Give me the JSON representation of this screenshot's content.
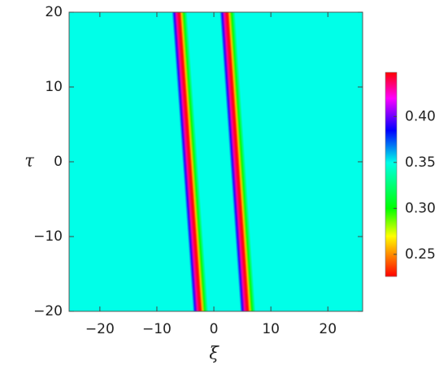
{
  "chart_data": {
    "type": "density",
    "x_label": "ξ",
    "y_label": "τ",
    "xlim": [
      -25.4,
      26.1
    ],
    "xticks": [
      {
        "value": -20,
        "label": "−20"
      },
      {
        "value": -10,
        "label": "−10"
      },
      0,
      10,
      20
    ],
    "ylim": [
      -20,
      20
    ],
    "yticks": [
      {
        "value": -20,
        "label": "−20"
      },
      {
        "value": -10,
        "label": "−10"
      },
      0,
      10,
      20
    ],
    "background_value": 0.35,
    "stripes": [
      {
        "xi_at_top": -6.0,
        "xi_at_bottom": -2.3
      },
      {
        "xi_at_top": 2.4,
        "xi_at_bottom": 6.0
      }
    ],
    "profile": {
      "offsets": [
        -1.4,
        -1.0,
        -0.6,
        -0.2,
        0,
        0.3,
        0.7,
        1.3
      ],
      "values": [
        0.35,
        0.39,
        0.43,
        0.445,
        0.23,
        0.26,
        0.3,
        0.35
      ]
    },
    "colormap": [
      {
        "value": 0.226,
        "color": "#ff0000"
      },
      {
        "value": 0.27,
        "color": "#ffff00"
      },
      {
        "value": 0.3,
        "color": "#00ff00"
      },
      {
        "value": 0.35,
        "color": "#00ffe8"
      },
      {
        "value": 0.385,
        "color": "#0000ff"
      },
      {
        "value": 0.42,
        "color": "#ff00ff"
      },
      {
        "value": 0.448,
        "color": "#ff0000"
      }
    ],
    "colorbar_lim": [
      0.226,
      0.448
    ],
    "colorbar_ticks": [
      0.25,
      {
        "value": 0.3,
        "label": "0.30"
      },
      0.35,
      {
        "value": 0.4,
        "label": "0.40"
      }
    ]
  }
}
